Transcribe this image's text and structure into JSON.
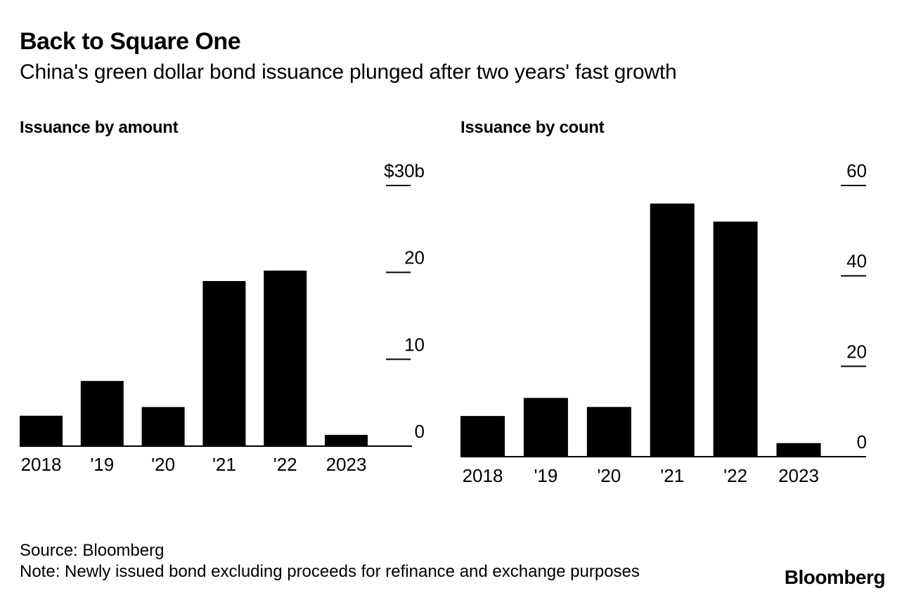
{
  "title": "Back to Square One",
  "subtitle": "China's green dollar bond issuance plunged after two years' fast growth",
  "source": "Source: Bloomberg",
  "note": "Note: Newly issued bond excluding proceeds for refinance and exchange purposes",
  "brand": "Bloomberg",
  "colors": {
    "bar": "#000000",
    "background": "#ffffff"
  },
  "chart_data": [
    {
      "type": "bar",
      "title": "Issuance by amount",
      "categories": [
        "2018",
        "'19",
        "'20",
        "'21",
        "'22",
        "2023"
      ],
      "values": [
        3.5,
        7.5,
        4.5,
        19,
        20.2,
        1.3
      ],
      "unit": "$b",
      "ylim": [
        0,
        30
      ],
      "yticks": [
        0,
        10,
        20,
        30
      ],
      "ytick_labels": [
        "0",
        "10",
        "20",
        "$30b"
      ],
      "xlabel": "",
      "ylabel": "",
      "grid": false
    },
    {
      "type": "bar",
      "title": "Issuance by count",
      "categories": [
        "2018",
        "'19",
        "'20",
        "'21",
        "'22",
        "2023"
      ],
      "values": [
        9,
        13,
        11,
        56,
        52,
        3
      ],
      "ylim": [
        0,
        60
      ],
      "yticks": [
        0,
        20,
        40,
        60
      ],
      "ytick_labels": [
        "0",
        "20",
        "40",
        "60"
      ],
      "xlabel": "",
      "ylabel": "",
      "grid": false
    }
  ]
}
